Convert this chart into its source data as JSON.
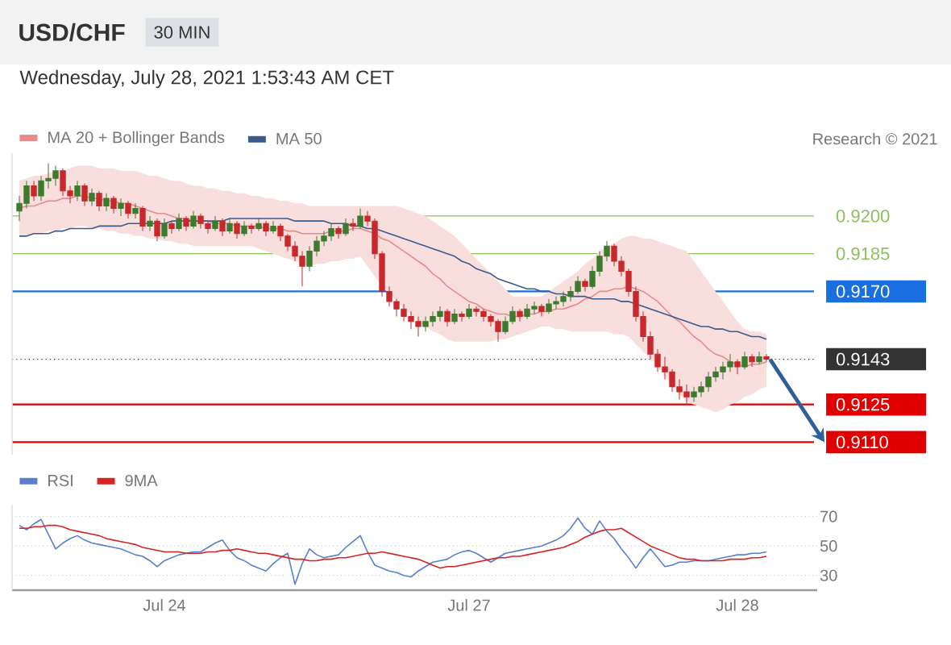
{
  "chart_data": [
    {
      "type": "candlestick",
      "title": "USD/CHF",
      "subtitle": "Wednesday, July 28, 2021 1:53:43 AM CET",
      "annotations": [
        "30 MIN",
        "Research © 2021"
      ],
      "legend": "top left",
      "tick_labels": "y",
      "ylim": [
        0.9105,
        0.9225
      ],
      "yticks": [
        {
          "value": 0.92,
          "label": "0.9200"
        },
        {
          "value": 0.9185,
          "label": "0.9185"
        },
        {
          "value": 0.917,
          "label": "0.9170"
        },
        {
          "value": 0.9143,
          "label": "0.9143"
        },
        {
          "value": 0.9125,
          "label": "0.9125"
        },
        {
          "value": 0.911,
          "label": "0.9110"
        }
      ],
      "categories": [
        null,
        null,
        null,
        null,
        null,
        null,
        null,
        null,
        null,
        null,
        null,
        null,
        null,
        null,
        null,
        null,
        null,
        null,
        null,
        null,
        null,
        null,
        null,
        null,
        null,
        null,
        null,
        null,
        null,
        null,
        null,
        null,
        null,
        null,
        null,
        null,
        null,
        null,
        null,
        null,
        null,
        null,
        null,
        null,
        null,
        null,
        null,
        null,
        null,
        null,
        null,
        null,
        null,
        null,
        null,
        null,
        null,
        null,
        null,
        null,
        null,
        null,
        null,
        null,
        null,
        null,
        null,
        null,
        null,
        null,
        null,
        null,
        null,
        null,
        null,
        null,
        null,
        null,
        null,
        null,
        null,
        null,
        null,
        null,
        null,
        null,
        null,
        null,
        null,
        null,
        null,
        null,
        null,
        null,
        null,
        null,
        null,
        null,
        null,
        null,
        null,
        null,
        null,
        null
      ],
      "ohlc": [
        [
          0.9202,
          0.9208,
          0.9198,
          0.9205
        ],
        [
          0.9205,
          0.9214,
          0.9203,
          0.9212
        ],
        [
          0.9212,
          0.9214,
          0.9206,
          0.9208
        ],
        [
          0.9208,
          0.9216,
          0.9206,
          0.9214
        ],
        [
          0.9214,
          0.9221,
          0.9211,
          0.9215
        ],
        [
          0.9215,
          0.922,
          0.9212,
          0.9218
        ],
        [
          0.9218,
          0.9219,
          0.9208,
          0.921
        ],
        [
          0.921,
          0.9212,
          0.9205,
          0.9208
        ],
        [
          0.9208,
          0.9214,
          0.9206,
          0.9212
        ],
        [
          0.9212,
          0.9213,
          0.9204,
          0.9206
        ],
        [
          0.9206,
          0.9211,
          0.9204,
          0.9209
        ],
        [
          0.9209,
          0.921,
          0.9202,
          0.9204
        ],
        [
          0.9204,
          0.9209,
          0.9202,
          0.9207
        ],
        [
          0.9207,
          0.9208,
          0.9201,
          0.9203
        ],
        [
          0.9203,
          0.9207,
          0.92,
          0.9205
        ],
        [
          0.9205,
          0.9206,
          0.9199,
          0.9201
        ],
        [
          0.9201,
          0.9205,
          0.9199,
          0.9203
        ],
        [
          0.9203,
          0.9204,
          0.9194,
          0.9196
        ],
        [
          0.9196,
          0.92,
          0.9194,
          0.9198
        ],
        [
          0.9198,
          0.9199,
          0.919,
          0.9192
        ],
        [
          0.9192,
          0.9199,
          0.9191,
          0.9197
        ],
        [
          0.9197,
          0.9198,
          0.9193,
          0.9195
        ],
        [
          0.9195,
          0.9201,
          0.9194,
          0.9199
        ],
        [
          0.9199,
          0.92,
          0.9194,
          0.9196
        ],
        [
          0.9196,
          0.9202,
          0.9195,
          0.92
        ],
        [
          0.92,
          0.9201,
          0.9195,
          0.9197
        ],
        [
          0.9197,
          0.9198,
          0.9193,
          0.9195
        ],
        [
          0.9195,
          0.92,
          0.9194,
          0.9198
        ],
        [
          0.9198,
          0.9199,
          0.9192,
          0.9194
        ],
        [
          0.9194,
          0.9199,
          0.9193,
          0.9197
        ],
        [
          0.9197,
          0.9198,
          0.9191,
          0.9193
        ],
        [
          0.9193,
          0.9198,
          0.9192,
          0.9196
        ],
        [
          0.9196,
          0.9197,
          0.9193,
          0.9195
        ],
        [
          0.9195,
          0.9199,
          0.9194,
          0.9197
        ],
        [
          0.9197,
          0.9198,
          0.9192,
          0.9194
        ],
        [
          0.9194,
          0.9198,
          0.9193,
          0.9196
        ],
        [
          0.9196,
          0.9197,
          0.919,
          0.9192
        ],
        [
          0.9192,
          0.9193,
          0.9186,
          0.9188
        ],
        [
          0.9188,
          0.919,
          0.9182,
          0.9184
        ],
        [
          0.9184,
          0.9186,
          0.9172,
          0.918
        ],
        [
          0.918,
          0.9188,
          0.9178,
          0.9186
        ],
        [
          0.9186,
          0.9192,
          0.9184,
          0.919
        ],
        [
          0.919,
          0.9194,
          0.9188,
          0.9192
        ],
        [
          0.9192,
          0.9197,
          0.919,
          0.9195
        ],
        [
          0.9195,
          0.9196,
          0.9191,
          0.9193
        ],
        [
          0.9193,
          0.9199,
          0.9192,
          0.9197
        ],
        [
          0.9197,
          0.9199,
          0.9194,
          0.9196
        ],
        [
          0.9196,
          0.9203,
          0.9195,
          0.92
        ],
        [
          0.92,
          0.9202,
          0.9196,
          0.9198
        ],
        [
          0.9198,
          0.9199,
          0.9183,
          0.9185
        ],
        [
          0.9185,
          0.9186,
          0.9168,
          0.917
        ],
        [
          0.917,
          0.9172,
          0.9164,
          0.9166
        ],
        [
          0.9166,
          0.9167,
          0.916,
          0.9163
        ],
        [
          0.9163,
          0.9165,
          0.9158,
          0.916
        ],
        [
          0.916,
          0.9162,
          0.9155,
          0.9158
        ],
        [
          0.9158,
          0.916,
          0.9152,
          0.9156
        ],
        [
          0.9156,
          0.916,
          0.9154,
          0.9158
        ],
        [
          0.9158,
          0.9162,
          0.9156,
          0.916
        ],
        [
          0.916,
          0.9164,
          0.9158,
          0.9162
        ],
        [
          0.9162,
          0.9163,
          0.9156,
          0.9158
        ],
        [
          0.9158,
          0.9163,
          0.9157,
          0.9161
        ],
        [
          0.9161,
          0.9162,
          0.9158,
          0.916
        ],
        [
          0.916,
          0.9165,
          0.9159,
          0.9163
        ],
        [
          0.9163,
          0.9164,
          0.916,
          0.9162
        ],
        [
          0.9162,
          0.9163,
          0.9158,
          0.916
        ],
        [
          0.916,
          0.9161,
          0.9156,
          0.9158
        ],
        [
          0.9158,
          0.9159,
          0.915,
          0.9154
        ],
        [
          0.9154,
          0.916,
          0.9153,
          0.9158
        ],
        [
          0.9158,
          0.9164,
          0.9157,
          0.9162
        ],
        [
          0.9162,
          0.9163,
          0.9158,
          0.916
        ],
        [
          0.916,
          0.9165,
          0.9159,
          0.9163
        ],
        [
          0.9163,
          0.9166,
          0.9161,
          0.9164
        ],
        [
          0.9164,
          0.9165,
          0.916,
          0.9162
        ],
        [
          0.9162,
          0.9167,
          0.9161,
          0.9165
        ],
        [
          0.9165,
          0.9168,
          0.9163,
          0.9166
        ],
        [
          0.9166,
          0.917,
          0.9164,
          0.9168
        ],
        [
          0.9168,
          0.9172,
          0.9166,
          0.917
        ],
        [
          0.917,
          0.9176,
          0.9169,
          0.9174
        ],
        [
          0.9174,
          0.9175,
          0.917,
          0.9172
        ],
        [
          0.9172,
          0.918,
          0.9171,
          0.9178
        ],
        [
          0.9178,
          0.9186,
          0.9176,
          0.9184
        ],
        [
          0.9184,
          0.919,
          0.9182,
          0.9188
        ],
        [
          0.9188,
          0.9189,
          0.918,
          0.9182
        ],
        [
          0.9182,
          0.9184,
          0.9176,
          0.9178
        ],
        [
          0.9178,
          0.9179,
          0.9168,
          0.917
        ],
        [
          0.917,
          0.9172,
          0.9158,
          0.916
        ],
        [
          0.916,
          0.9162,
          0.915,
          0.9152
        ],
        [
          0.9152,
          0.9154,
          0.9143,
          0.9145
        ],
        [
          0.9145,
          0.9147,
          0.9138,
          0.914
        ],
        [
          0.914,
          0.9144,
          0.9135,
          0.9138
        ],
        [
          0.9138,
          0.9139,
          0.913,
          0.9132
        ],
        [
          0.9132,
          0.9135,
          0.9127,
          0.913
        ],
        [
          0.913,
          0.9133,
          0.9125,
          0.9128
        ],
        [
          0.9128,
          0.9132,
          0.9126,
          0.913
        ],
        [
          0.913,
          0.9134,
          0.9128,
          0.9132
        ],
        [
          0.9132,
          0.9138,
          0.913,
          0.9136
        ],
        [
          0.9136,
          0.914,
          0.9134,
          0.9138
        ],
        [
          0.9138,
          0.9142,
          0.9135,
          0.914
        ],
        [
          0.914,
          0.9145,
          0.9138,
          0.9142
        ],
        [
          0.9142,
          0.9143,
          0.9137,
          0.914
        ],
        [
          0.914,
          0.9146,
          0.9139,
          0.9144
        ],
        [
          0.9144,
          0.9145,
          0.914,
          0.9142
        ],
        [
          0.9142,
          0.9146,
          0.9141,
          0.9144
        ],
        [
          0.9144,
          0.9145,
          0.9142,
          0.9143
        ]
      ],
      "series": [
        {
          "name": "MA 20 + Bollinger Bands",
          "type": "line",
          "color": "#e88a8a",
          "values": [
            0.9203,
            0.9204,
            0.9204,
            0.9205,
            0.9206,
            0.9206,
            0.9207,
            0.9207,
            0.9208,
            0.9208,
            0.9207,
            0.9207,
            0.9206,
            0.9206,
            0.9205,
            0.9205,
            0.9204,
            0.9203,
            0.9202,
            0.9201,
            0.9201,
            0.92,
            0.9199,
            0.9199,
            0.9198,
            0.9198,
            0.9198,
            0.9197,
            0.9197,
            0.9197,
            0.9196,
            0.9196,
            0.9196,
            0.9196,
            0.9195,
            0.9195,
            0.9195,
            0.9194,
            0.9194,
            0.9193,
            0.9193,
            0.9193,
            0.9193,
            0.9194,
            0.9194,
            0.9194,
            0.9195,
            0.9195,
            0.9194,
            0.9193,
            0.9191,
            0.919,
            0.9188,
            0.9186,
            0.9184,
            0.9182,
            0.918,
            0.9177,
            0.9175,
            0.9172,
            0.917,
            0.9168,
            0.9166,
            0.9165,
            0.9163,
            0.9162,
            0.9161,
            0.9161,
            0.916,
            0.916,
            0.9161,
            0.9161,
            0.9162,
            0.9162,
            0.9163,
            0.9163,
            0.9164,
            0.9165,
            0.9167,
            0.9168,
            0.917,
            0.917,
            0.9171,
            0.9171,
            0.9172,
            0.9171,
            0.917,
            0.9168,
            0.9166,
            0.9163,
            0.916,
            0.9158,
            0.9155,
            0.9152,
            0.915,
            0.9147,
            0.9145,
            0.9144,
            0.9142,
            0.9141,
            0.914,
            0.9141,
            0.9141,
            0.9142
          ],
          "upper": [
            0.9214,
            0.9215,
            0.9216,
            0.9216,
            0.9217,
            0.9218,
            0.9218,
            0.9219,
            0.922,
            0.922,
            0.922,
            0.9219,
            0.9219,
            0.9219,
            0.9218,
            0.9218,
            0.9218,
            0.9217,
            0.9216,
            0.9216,
            0.9215,
            0.9214,
            0.9214,
            0.9213,
            0.9212,
            0.9212,
            0.9211,
            0.9211,
            0.921,
            0.921,
            0.9209,
            0.9209,
            0.9208,
            0.9208,
            0.9207,
            0.9207,
            0.9206,
            0.9206,
            0.9205,
            0.9205,
            0.9204,
            0.9204,
            0.9204,
            0.9204,
            0.9204,
            0.9204,
            0.9204,
            0.9204,
            0.9204,
            0.9204,
            0.9204,
            0.9204,
            0.9204,
            0.9203,
            0.9202,
            0.9201,
            0.92,
            0.9198,
            0.9196,
            0.9194,
            0.9192,
            0.9189,
            0.9186,
            0.9183,
            0.918,
            0.9177,
            0.9174,
            0.9171,
            0.9168,
            0.9168,
            0.9168,
            0.9168,
            0.9168,
            0.917,
            0.9172,
            0.9174,
            0.9176,
            0.9178,
            0.9181,
            0.9183,
            0.9186,
            0.9188,
            0.9189,
            0.9191,
            0.9192,
            0.9192,
            0.9191,
            0.9191,
            0.919,
            0.9189,
            0.9188,
            0.9187,
            0.9186,
            0.9182,
            0.9178,
            0.9174,
            0.917,
            0.9166,
            0.9162,
            0.9158,
            0.9155,
            0.9154,
            0.9154,
            0.9153
          ],
          "lower": [
            0.9192,
            0.9192,
            0.9193,
            0.9193,
            0.9194,
            0.9194,
            0.9195,
            0.9195,
            0.9196,
            0.9196,
            0.9195,
            0.9195,
            0.9194,
            0.9194,
            0.9193,
            0.9193,
            0.9192,
            0.9192,
            0.9191,
            0.9191,
            0.919,
            0.919,
            0.9189,
            0.9189,
            0.9188,
            0.9188,
            0.9188,
            0.9188,
            0.9188,
            0.9188,
            0.9188,
            0.9188,
            0.9188,
            0.9187,
            0.9186,
            0.9185,
            0.9184,
            0.9183,
            0.9182,
            0.9181,
            0.918,
            0.9181,
            0.9181,
            0.9182,
            0.9182,
            0.9183,
            0.9183,
            0.9184,
            0.918,
            0.9176,
            0.9172,
            0.9169,
            0.9166,
            0.9163,
            0.9161,
            0.9158,
            0.9156,
            0.9154,
            0.9153,
            0.9151,
            0.915,
            0.915,
            0.915,
            0.915,
            0.915,
            0.915,
            0.9151,
            0.9151,
            0.9152,
            0.9153,
            0.9154,
            0.9155,
            0.9156,
            0.9156,
            0.9155,
            0.9155,
            0.9154,
            0.9154,
            0.9154,
            0.9154,
            0.9154,
            0.9154,
            0.9153,
            0.9153,
            0.9152,
            0.9149,
            0.9146,
            0.9143,
            0.914,
            0.9136,
            0.9133,
            0.9129,
            0.9126,
            0.9125,
            0.9124,
            0.9123,
            0.9122,
            0.9123,
            0.9125,
            0.9126,
            0.9128,
            0.9129,
            0.9131,
            0.9132
          ]
        },
        {
          "name": "MA 50",
          "type": "line",
          "color": "#3b5b8c",
          "values": [
            0.9192,
            0.9192,
            0.9193,
            0.9193,
            0.9193,
            0.9194,
            0.9194,
            0.9195,
            0.9195,
            0.9195,
            0.9195,
            0.9196,
            0.9196,
            0.9196,
            0.9196,
            0.9197,
            0.9197,
            0.9197,
            0.9197,
            0.9197,
            0.9197,
            0.9198,
            0.9198,
            0.9198,
            0.9198,
            0.9198,
            0.9198,
            0.9198,
            0.9198,
            0.9199,
            0.9199,
            0.9199,
            0.9199,
            0.9199,
            0.9199,
            0.9199,
            0.9199,
            0.9199,
            0.9198,
            0.9198,
            0.9198,
            0.9198,
            0.9198,
            0.9197,
            0.9197,
            0.9197,
            0.9196,
            0.9196,
            0.9195,
            0.9195,
            0.9194,
            0.9193,
            0.9192,
            0.9191,
            0.919,
            0.9189,
            0.9188,
            0.9187,
            0.9186,
            0.9185,
            0.9184,
            0.9182,
            0.9181,
            0.9179,
            0.9178,
            0.9177,
            0.9175,
            0.9174,
            0.9173,
            0.9172,
            0.9171,
            0.9171,
            0.917,
            0.917,
            0.9169,
            0.9169,
            0.9168,
            0.9168,
            0.9168,
            0.9167,
            0.9167,
            0.9167,
            0.9167,
            0.9166,
            0.9166,
            0.9165,
            0.9164,
            0.9163,
            0.9162,
            0.9161,
            0.916,
            0.9159,
            0.9158,
            0.9157,
            0.9156,
            0.9156,
            0.9155,
            0.9155,
            0.9154,
            0.9154,
            0.9153,
            0.9152,
            0.9152,
            0.9151
          ]
        }
      ],
      "ref_lines": [
        {
          "axis": "y",
          "value": 0.92,
          "color": "#8fbf5a",
          "line_style": "solid"
        },
        {
          "axis": "y",
          "value": 0.9185,
          "color": "#8fbf5a",
          "line_style": "solid"
        },
        {
          "axis": "y",
          "value": 0.917,
          "color": "#1a6fe0",
          "line_style": "solid"
        },
        {
          "axis": "y",
          "value": 0.9143,
          "color": "#333333",
          "line_style": "dotted"
        },
        {
          "axis": "y",
          "value": 0.9125,
          "color": "#e00000",
          "line_style": "solid"
        },
        {
          "axis": "y",
          "value": 0.911,
          "color": "#e00000",
          "line_style": "solid"
        }
      ]
    },
    {
      "type": "line",
      "legend": "top left",
      "grid": "y",
      "ylim": [
        20,
        78
      ],
      "yticks": [
        70,
        50,
        30
      ],
      "categories": [
        null,
        null,
        null,
        null,
        null,
        null,
        null,
        null,
        null,
        null,
        null,
        null,
        null,
        null,
        null,
        null,
        null,
        null,
        null,
        null,
        "Jul 24",
        null,
        null,
        null,
        null,
        null,
        null,
        null,
        null,
        null,
        null,
        null,
        null,
        null,
        null,
        null,
        null,
        null,
        null,
        null,
        null,
        null,
        null,
        null,
        null,
        null,
        null,
        null,
        null,
        null,
        null,
        null,
        null,
        null,
        null,
        null,
        null,
        null,
        null,
        null,
        null,
        null,
        "Jul 27",
        null,
        null,
        null,
        null,
        null,
        null,
        null,
        null,
        null,
        null,
        null,
        null,
        null,
        null,
        null,
        null,
        null,
        null,
        null,
        null,
        null,
        null,
        null,
        null,
        null,
        null,
        null,
        null,
        null,
        null,
        null,
        null,
        null,
        null,
        null,
        null,
        "Jul 28",
        null,
        null,
        null,
        null
      ],
      "series": [
        {
          "name": "RSI",
          "color": "#5b7fd0",
          "values": [
            64,
            61,
            65,
            68,
            58,
            48,
            52,
            55,
            57,
            54,
            52,
            51,
            50,
            49,
            48,
            46,
            44,
            43,
            40,
            36,
            40,
            42,
            44,
            45,
            46,
            46,
            49,
            52,
            54,
            47,
            42,
            40,
            37,
            35,
            33,
            38,
            42,
            45,
            24,
            38,
            48,
            44,
            42,
            43,
            44,
            49,
            53,
            57,
            46,
            37,
            35,
            33,
            32,
            30,
            29,
            33,
            36,
            39,
            40,
            41,
            44,
            46,
            47,
            45,
            42,
            39,
            42,
            45,
            46,
            47,
            48,
            49,
            50,
            52,
            54,
            57,
            62,
            69,
            62,
            58,
            67,
            60,
            55,
            48,
            42,
            35,
            42,
            48,
            42,
            36,
            37,
            39,
            39,
            40,
            40,
            40,
            41,
            42,
            43,
            44,
            44,
            45,
            45,
            46
          ]
        },
        {
          "name": "9MA",
          "color": "#d62424",
          "values": [
            62,
            62,
            63,
            63,
            64,
            64,
            63,
            61,
            60,
            59,
            58,
            57,
            55,
            54,
            53,
            52,
            51,
            49,
            48,
            47,
            46,
            46,
            46,
            45,
            45,
            45,
            46,
            46,
            47,
            47,
            48,
            47,
            46,
            45,
            45,
            44,
            43,
            42,
            41,
            41,
            40,
            40,
            41,
            41,
            42,
            42,
            43,
            44,
            45,
            45,
            46,
            45,
            44,
            43,
            42,
            41,
            39,
            37,
            35,
            36,
            36,
            37,
            38,
            39,
            40,
            41,
            42,
            42,
            43,
            43,
            44,
            45,
            46,
            47,
            48,
            49,
            51,
            53,
            56,
            58,
            60,
            61,
            61,
            62,
            59,
            56,
            53,
            50,
            48,
            46,
            44,
            42,
            41,
            41,
            40,
            40,
            40,
            40,
            41,
            41,
            41,
            42,
            42,
            43
          ]
        }
      ]
    }
  ]
}
